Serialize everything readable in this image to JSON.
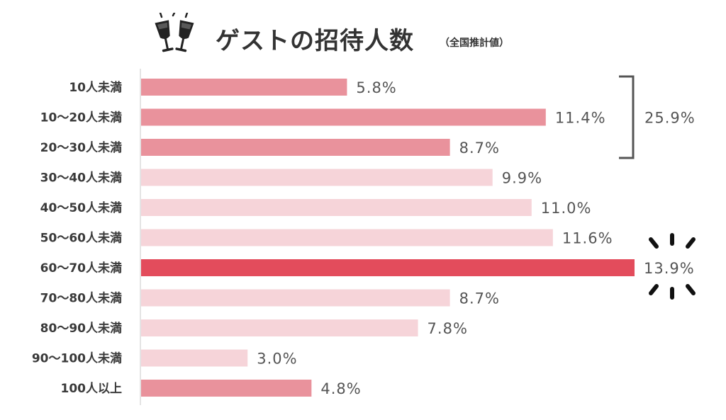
{
  "chart_data": {
    "type": "bar",
    "orientation": "horizontal",
    "title": "ゲストの招待人数",
    "subtitle": "（全国推計値）",
    "categories": [
      "10人未満",
      "10〜20人未満",
      "20〜30人未満",
      "30〜40人未満",
      "40〜50人未満",
      "50〜60人未満",
      "60〜70人未満",
      "70〜80人未満",
      "80〜90人未満",
      "90〜100人未満",
      "100人以上"
    ],
    "values": [
      5.8,
      11.4,
      8.7,
      9.9,
      11.0,
      11.6,
      13.9,
      8.7,
      7.8,
      3.0,
      4.8
    ],
    "value_labels": [
      "5.8%",
      "11.4%",
      "8.7%",
      "9.9%",
      "11.0%",
      "11.6%",
      "13.9%",
      "8.7%",
      "7.8%",
      "3.0%",
      "4.8%"
    ],
    "unit": "%",
    "xlim": [
      0,
      13.9
    ],
    "grid": false,
    "legend": "none",
    "highlight_index": 6,
    "bracket": {
      "from": 0,
      "to": 2,
      "label": "25.9%"
    },
    "colors": {
      "group_dark": "#e9929c",
      "group_light": "#f6d4d9",
      "highlight": "#e34c5c",
      "bar_group": [
        "dark",
        "dark",
        "dark",
        "light",
        "light",
        "light",
        "highlight",
        "light",
        "light",
        "light",
        "dark"
      ]
    }
  },
  "icon": "champagne-glasses-icon",
  "accent_icon": "sparkle-burst-icon"
}
